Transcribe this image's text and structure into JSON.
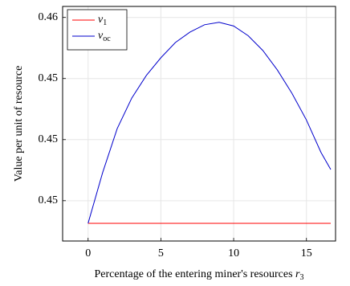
{
  "chart_data": {
    "type": "line",
    "xlabel": "Percentage of the entering miner's resources r3",
    "ylabel": "Value per unit of resource",
    "x": [
      0,
      1,
      2,
      3,
      4,
      5,
      6,
      7,
      8,
      9,
      10,
      11,
      12,
      13,
      14,
      15,
      16,
      16.67
    ],
    "series": [
      {
        "name": "v1",
        "color": "#ff0000",
        "values": [
          0.45163,
          0.45163,
          0.45163,
          0.45163,
          0.45163,
          0.45163,
          0.45163,
          0.45163,
          0.45163,
          0.45163,
          0.45163,
          0.45163,
          0.45163,
          0.45163,
          0.45163,
          0.45163,
          0.45163,
          0.45163
        ]
      },
      {
        "name": "voc",
        "color": "#0000cc",
        "values": [
          0.45163,
          0.45246,
          0.45318,
          0.45368,
          0.45405,
          0.45434,
          0.45459,
          0.45476,
          0.45488,
          0.45492,
          0.45486,
          0.4547,
          0.45446,
          0.45414,
          0.45376,
          0.45332,
          0.45279,
          0.45251
        ]
      }
    ],
    "xlim": [
      -1.75,
      17.0
    ],
    "xticks": [
      0,
      5,
      10,
      15
    ],
    "ylim": [
      0.45134,
      0.45518
    ],
    "yticks": [
      {
        "value": 0.452,
        "label": "0.45"
      },
      {
        "value": 0.453,
        "label": "0.45"
      },
      {
        "value": 0.454,
        "label": "0.45"
      },
      {
        "value": 0.455,
        "label": "0.46"
      }
    ],
    "grid": true,
    "legend": "top-left"
  }
}
